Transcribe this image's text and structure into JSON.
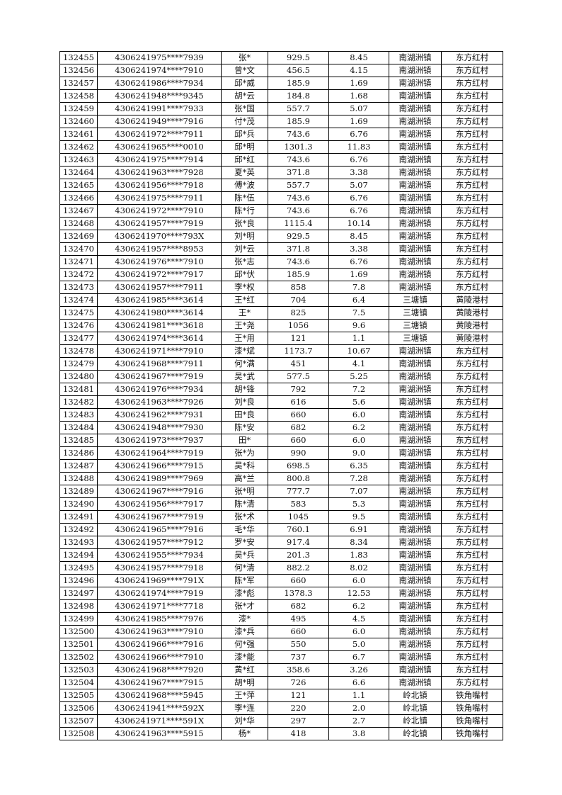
{
  "rows": [
    [
      "132455",
      "4306241975****7939",
      "张*",
      "929.5",
      "8.45",
      "南湖洲镇",
      "东方红村"
    ],
    [
      "132456",
      "4306241974****7910",
      "曾*文",
      "456.5",
      "4.15",
      "南湖洲镇",
      "东方红村"
    ],
    [
      "132457",
      "4306241986****7934",
      "邱*威",
      "185.9",
      "1.69",
      "南湖洲镇",
      "东方红村"
    ],
    [
      "132458",
      "4306241948****9345",
      "胡*云",
      "184.8",
      "1.68",
      "南湖洲镇",
      "东方红村"
    ],
    [
      "132459",
      "4306241991****7933",
      "张*国",
      "557.7",
      "5.07",
      "南湖洲镇",
      "东方红村"
    ],
    [
      "132460",
      "4306241949****7916",
      "付*茂",
      "185.9",
      "1.69",
      "南湖洲镇",
      "东方红村"
    ],
    [
      "132461",
      "4306241972****7911",
      "邱*兵",
      "743.6",
      "6.76",
      "南湖洲镇",
      "东方红村"
    ],
    [
      "132462",
      "4306241965****0010",
      "邱*明",
      "1301.3",
      "11.83",
      "南湖洲镇",
      "东方红村"
    ],
    [
      "132463",
      "4306241975****7914",
      "邱*红",
      "743.6",
      "6.76",
      "南湖洲镇",
      "东方红村"
    ],
    [
      "132464",
      "4306241963****7928",
      "夏*英",
      "371.8",
      "3.38",
      "南湖洲镇",
      "东方红村"
    ],
    [
      "132465",
      "4306241956****7918",
      "傅*波",
      "557.7",
      "5.07",
      "南湖洲镇",
      "东方红村"
    ],
    [
      "132466",
      "4306241975****7911",
      "陈*伍",
      "743.6",
      "6.76",
      "南湖洲镇",
      "东方红村"
    ],
    [
      "132467",
      "4306241972****7910",
      "陈*行",
      "743.6",
      "6.76",
      "南湖洲镇",
      "东方红村"
    ],
    [
      "132468",
      "4306241957****7919",
      "张*良",
      "1115.4",
      "10.14",
      "南湖洲镇",
      "东方红村"
    ],
    [
      "132469",
      "4306241970****793X",
      "刘*明",
      "929.5",
      "8.45",
      "南湖洲镇",
      "东方红村"
    ],
    [
      "132470",
      "4306241957****8953",
      "刘*云",
      "371.8",
      "3.38",
      "南湖洲镇",
      "东方红村"
    ],
    [
      "132471",
      "4306241976****7910",
      "张*志",
      "743.6",
      "6.76",
      "南湖洲镇",
      "东方红村"
    ],
    [
      "132472",
      "4306241972****7917",
      "邱*伏",
      "185.9",
      "1.69",
      "南湖洲镇",
      "东方红村"
    ],
    [
      "132473",
      "4306241957****7911",
      "李*权",
      "858",
      "7.8",
      "南湖洲镇",
      "东方红村"
    ],
    [
      "132474",
      "4306241985****3614",
      "王*红",
      "704",
      "6.4",
      "三塘镇",
      "黄陵港村"
    ],
    [
      "132475",
      "4306241980****3614",
      "王*",
      "825",
      "7.5",
      "三塘镇",
      "黄陵港村"
    ],
    [
      "132476",
      "4306241981****3618",
      "王*尧",
      "1056",
      "9.6",
      "三塘镇",
      "黄陵港村"
    ],
    [
      "132477",
      "4306241974****3614",
      "王*用",
      "121",
      "1.1",
      "三塘镇",
      "黄陵港村"
    ],
    [
      "132478",
      "4306241971****7910",
      "漆*斌",
      "1173.7",
      "10.67",
      "南湖洲镇",
      "东方红村"
    ],
    [
      "132479",
      "4306241968****7911",
      "何*满",
      "451",
      "4.1",
      "南湖洲镇",
      "东方红村"
    ],
    [
      "132480",
      "4306241967****7919",
      "吴*武",
      "577.5",
      "5.25",
      "南湖洲镇",
      "东方红村"
    ],
    [
      "132481",
      "4306241976****7934",
      "胡*锋",
      "792",
      "7.2",
      "南湖洲镇",
      "东方红村"
    ],
    [
      "132482",
      "4306241963****7926",
      "刘*良",
      "616",
      "5.6",
      "南湖洲镇",
      "东方红村"
    ],
    [
      "132483",
      "4306241962****7931",
      "田*良",
      "660",
      "6.0",
      "南湖洲镇",
      "东方红村"
    ],
    [
      "132484",
      "4306241948****7930",
      "陈*安",
      "682",
      "6.2",
      "南湖洲镇",
      "东方红村"
    ],
    [
      "132485",
      "4306241973****7937",
      "田*",
      "660",
      "6.0",
      "南湖洲镇",
      "东方红村"
    ],
    [
      "132486",
      "4306241964****7919",
      "张*为",
      "990",
      "9.0",
      "南湖洲镇",
      "东方红村"
    ],
    [
      "132487",
      "4306241966****7915",
      "吴*科",
      "698.5",
      "6.35",
      "南湖洲镇",
      "东方红村"
    ],
    [
      "132488",
      "4306241989****7969",
      "高*兰",
      "800.8",
      "7.28",
      "南湖洲镇",
      "东方红村"
    ],
    [
      "132489",
      "4306241967****7916",
      "张*明",
      "777.7",
      "7.07",
      "南湖洲镇",
      "东方红村"
    ],
    [
      "132490",
      "4306241956****7917",
      "陈*清",
      "583",
      "5.3",
      "南湖洲镇",
      "东方红村"
    ],
    [
      "132491",
      "4306241967****7919",
      "张*术",
      "1045",
      "9.5",
      "南湖洲镇",
      "东方红村"
    ],
    [
      "132492",
      "4306241965****7916",
      "毛*华",
      "760.1",
      "6.91",
      "南湖洲镇",
      "东方红村"
    ],
    [
      "132493",
      "4306241957****7912",
      "罗*安",
      "917.4",
      "8.34",
      "南湖洲镇",
      "东方红村"
    ],
    [
      "132494",
      "4306241955****7934",
      "吴*兵",
      "201.3",
      "1.83",
      "南湖洲镇",
      "东方红村"
    ],
    [
      "132495",
      "4306241957****7918",
      "何*清",
      "882.2",
      "8.02",
      "南湖洲镇",
      "东方红村"
    ],
    [
      "132496",
      "4306241969****791X",
      "陈*军",
      "660",
      "6.0",
      "南湖洲镇",
      "东方红村"
    ],
    [
      "132497",
      "4306241974****7919",
      "漆*彪",
      "1378.3",
      "12.53",
      "南湖洲镇",
      "东方红村"
    ],
    [
      "132498",
      "4306241971****7718",
      "张*才",
      "682",
      "6.2",
      "南湖洲镇",
      "东方红村"
    ],
    [
      "132499",
      "4306241985****7976",
      "漆*",
      "495",
      "4.5",
      "南湖洲镇",
      "东方红村"
    ],
    [
      "132500",
      "4306241963****7910",
      "漆*兵",
      "660",
      "6.0",
      "南湖洲镇",
      "东方红村"
    ],
    [
      "132501",
      "4306241966****7916",
      "何*强",
      "550",
      "5.0",
      "南湖洲镇",
      "东方红村"
    ],
    [
      "132502",
      "4306241966****7910",
      "漆*能",
      "737",
      "6.7",
      "南湖洲镇",
      "东方红村"
    ],
    [
      "132503",
      "4306241968****7920",
      "黄*红",
      "358.6",
      "3.26",
      "南湖洲镇",
      "东方红村"
    ],
    [
      "132504",
      "4306241967****7915",
      "胡*明",
      "726",
      "6.6",
      "南湖洲镇",
      "东方红村"
    ],
    [
      "132505",
      "4306241968****5945",
      "王*萍",
      "121",
      "1.1",
      "岭北镇",
      "铁角嘴村"
    ],
    [
      "132506",
      "4306241941****592X",
      "李*连",
      "220",
      "2.0",
      "岭北镇",
      "铁角嘴村"
    ],
    [
      "132507",
      "4306241971****591X",
      "刘*华",
      "297",
      "2.7",
      "岭北镇",
      "铁角嘴村"
    ],
    [
      "132508",
      "4306241963****5915",
      "杨*",
      "418",
      "3.8",
      "岭北镇",
      "铁角嘴村"
    ]
  ]
}
